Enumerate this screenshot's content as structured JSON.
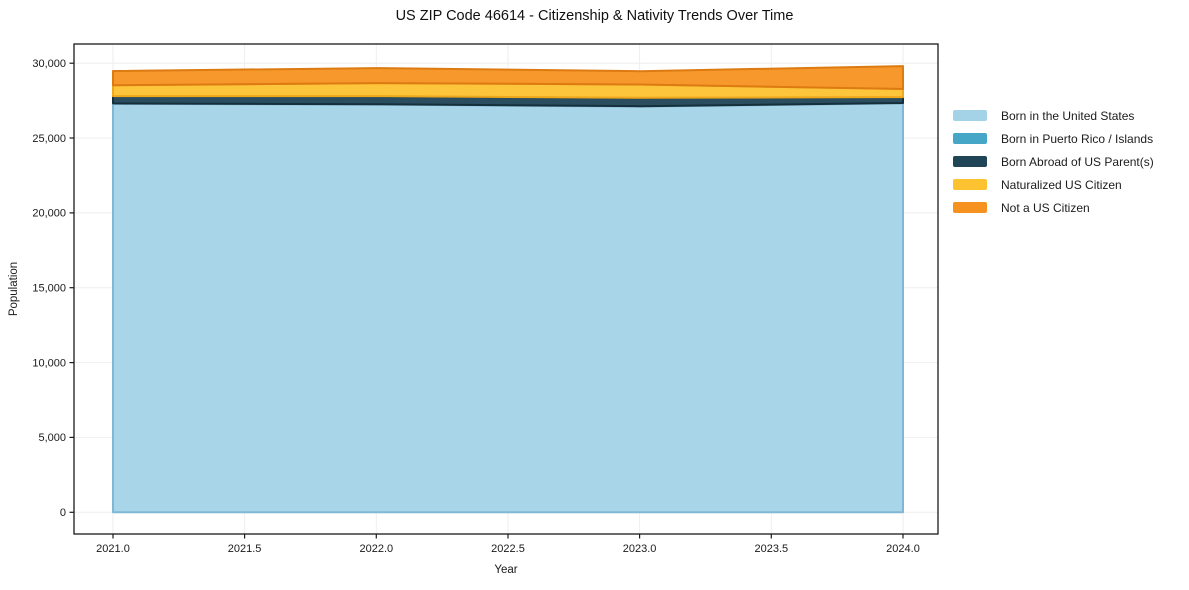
{
  "chart_data": {
    "type": "area",
    "stacked": true,
    "title": "US ZIP Code 46614 - Citizenship & Nativity Trends Over Time",
    "xlabel": "Year",
    "ylabel": "Population",
    "x": [
      2021,
      2022,
      2023,
      2024
    ],
    "series": [
      {
        "name": "Born in the United States",
        "color": "#A4D3E8",
        "edge": "#7FB8D4",
        "values": [
          27280,
          27230,
          27100,
          27310
        ]
      },
      {
        "name": "Born in Puerto Rico / Islands",
        "color": "#45A6C8",
        "edge": "#3690B0",
        "values": [
          30,
          30,
          25,
          30
        ]
      },
      {
        "name": "Born Abroad of US Parent(s)",
        "color": "#1F4556",
        "edge": "#152F3B",
        "values": [
          490,
          540,
          560,
          390
        ]
      },
      {
        "name": "Naturalized US Citizen",
        "color": "#FDC230",
        "edge": "#EFA81B",
        "values": [
          730,
          870,
          890,
          545
        ]
      },
      {
        "name": "Not a US Citizen",
        "color": "#F69220",
        "edge": "#DD7B12",
        "values": [
          945,
          1000,
          890,
          1530
        ]
      }
    ],
    "xlim": [
      2020.852,
      2024.133
    ],
    "ylim": [
      -1450,
      31280
    ],
    "x_ticks": [
      2021.0,
      2021.5,
      2022.0,
      2022.5,
      2023.0,
      2023.5,
      2024.0
    ],
    "x_tick_labels": [
      "2021.0",
      "2021.5",
      "2022.0",
      "2022.5",
      "2023.0",
      "2023.5",
      "2024.0"
    ],
    "y_ticks": [
      0,
      5000,
      10000,
      15000,
      20000,
      25000,
      30000
    ],
    "y_tick_labels": [
      "0",
      "5,000",
      "10,000",
      "15,000",
      "20,000",
      "25,000",
      "30,000"
    ],
    "grid": true,
    "grid_color": "#eeeeee",
    "spine_color": "#1a1a1a",
    "tick_label_color": "#1a1a1a",
    "legend_position": "right"
  }
}
